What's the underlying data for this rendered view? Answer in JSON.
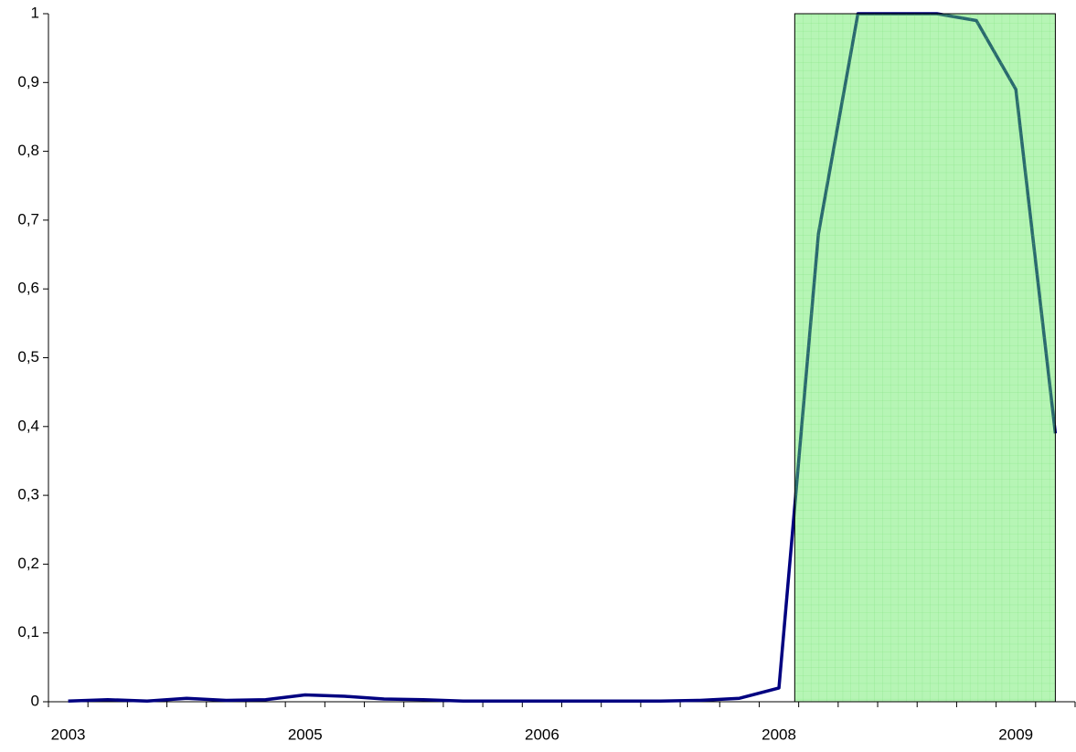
{
  "chart_data": {
    "type": "line",
    "categories": [
      "2003",
      null,
      null,
      null,
      null,
      null,
      "2005",
      null,
      null,
      null,
      null,
      null,
      "2006",
      null,
      null,
      null,
      null,
      null,
      "2008",
      null,
      null,
      null,
      null,
      null,
      "2009",
      null
    ],
    "series": [
      {
        "color": "#000080",
        "values": [
          0.001,
          0.003,
          0.001,
          0.005,
          0.002,
          0.003,
          0.01,
          0.008,
          0.004,
          0.003,
          0.001,
          0.001,
          0.001,
          0.001,
          0.001,
          0.001,
          0.002,
          0.005,
          0.02,
          0.68,
          1,
          1,
          1,
          0.99,
          0.89,
          0.39
        ]
      }
    ],
    "ylim": [
      0,
      1
    ],
    "yticks": [
      0,
      {
        "value": 0.1,
        "label": "0,1"
      },
      {
        "value": 0.2,
        "label": "0,2"
      },
      {
        "value": 0.3,
        "label": "0,3"
      },
      {
        "value": 0.4,
        "label": "0,4"
      },
      {
        "value": 0.5,
        "label": "0,5"
      },
      {
        "value": 0.6,
        "label": "0,6"
      },
      {
        "value": 0.7,
        "label": "0,7"
      },
      {
        "value": 0.8,
        "label": "0,8"
      },
      {
        "value": 0.9,
        "label": "0,9"
      },
      1
    ],
    "highlight": {
      "from": 18.4,
      "to": 25,
      "color": "#5ee85a"
    }
  }
}
